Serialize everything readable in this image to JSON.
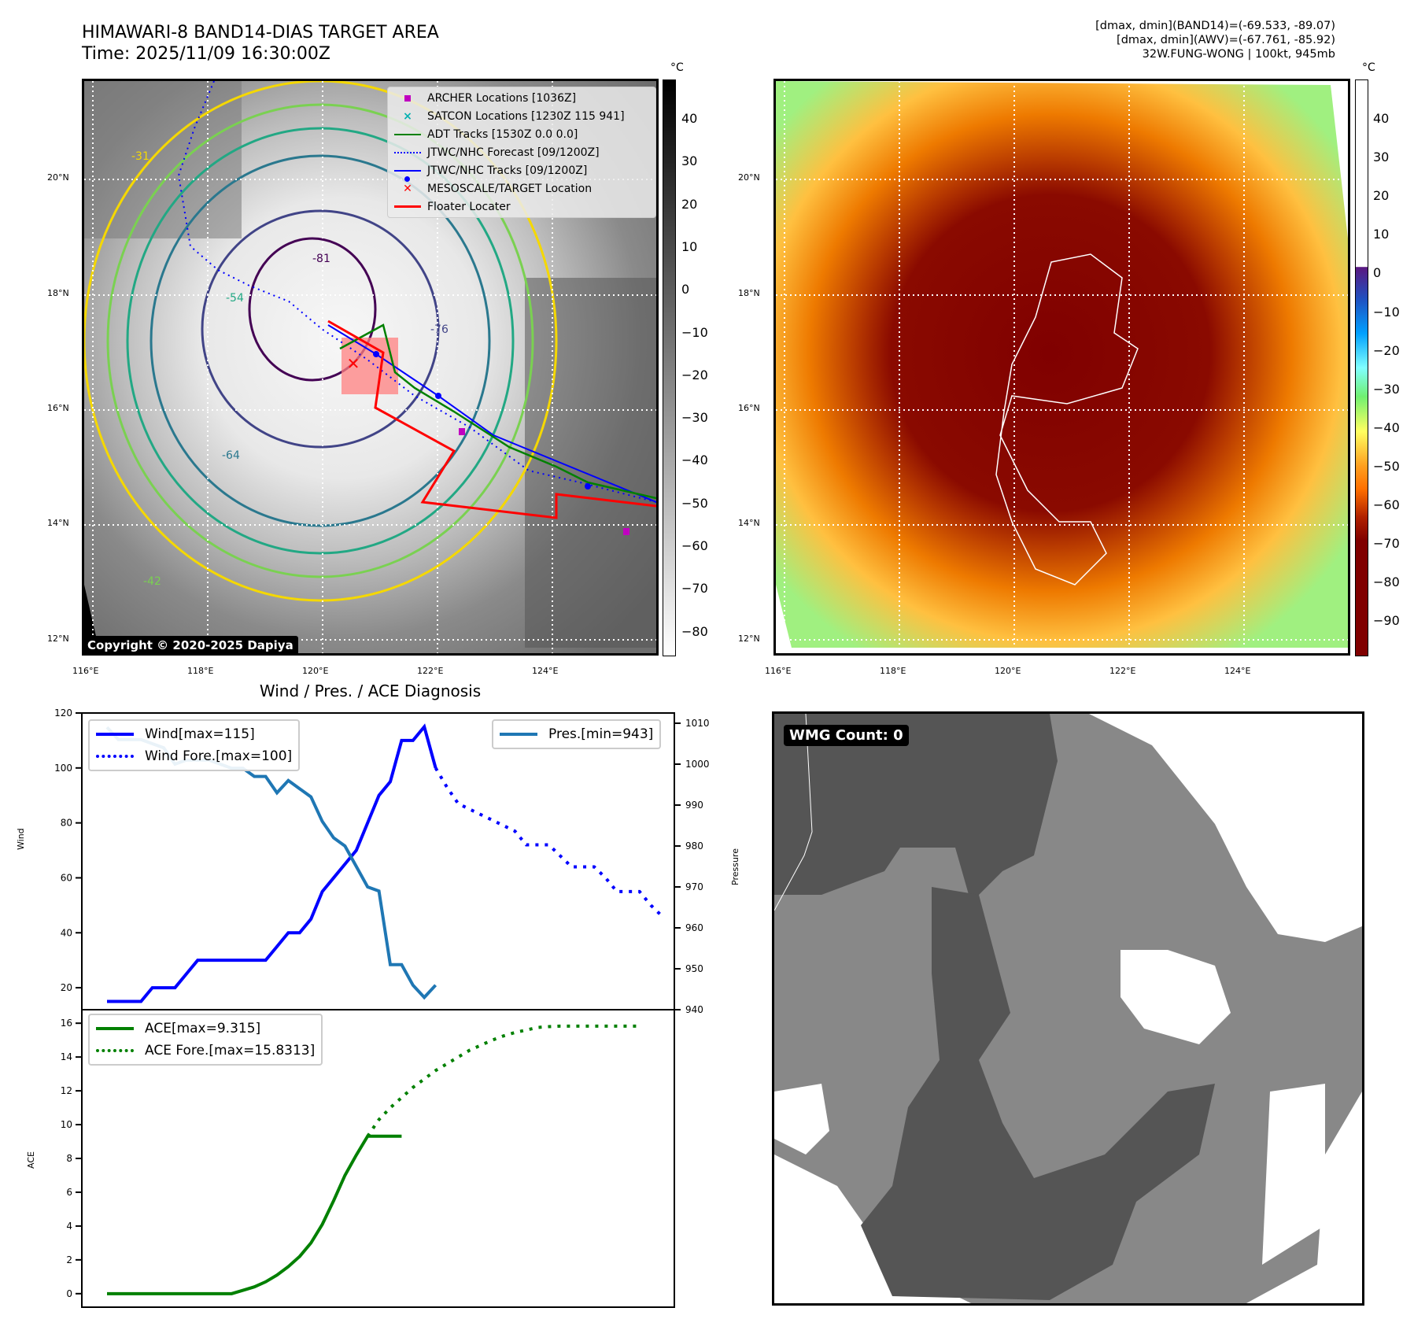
{
  "header": {
    "title": "HIMAWARI-8 BAND14-DIAS TARGET AREA",
    "time": "Time: 2025/11/09 16:30:00Z",
    "info_lines": [
      "[dmax, dmin](BAND14)=(-69.533, -89.07)",
      "[dmax, dmin](AWV)=(-67.761, -85.92)",
      "32W.FUNG-WONG | 100kt, 945mb"
    ]
  },
  "left_map": {
    "lat_labels": [
      "20°N",
      "18°N",
      "16°N",
      "14°N",
      "12°N"
    ],
    "lon_labels": [
      "116°E",
      "118°E",
      "120°E",
      "122°E",
      "124°E"
    ],
    "copyright": "Copyright © 2020-2025 Dapiya",
    "contour_labels": [
      "-31",
      "-42",
      "-54",
      "-64",
      "-76",
      "-81"
    ],
    "legend": [
      {
        "label": "ARCHER Locations [1036Z]",
        "icon": "magenta-square",
        "color": "#c000c0"
      },
      {
        "label": "SATCON Locations [1230Z 115 941]",
        "icon": "cyan-x",
        "color": "#00b0b0"
      },
      {
        "label": "ADT Tracks [1530Z 0.0 0.0]",
        "icon": "green-line",
        "color": "#008000"
      },
      {
        "label": "JTWC/NHC Forecast [09/1200Z]",
        "icon": "blue-dotted-line",
        "color": "#0000ff"
      },
      {
        "label": "JTWC/NHC Tracks [09/1200Z]",
        "icon": "blue-line-dot",
        "color": "#0000ff"
      },
      {
        "label": "MESOSCALE/TARGET Location",
        "icon": "red-x",
        "color": "#ff0000"
      },
      {
        "label": "Floater Locater",
        "icon": "red-line",
        "color": "#ff0000"
      }
    ],
    "colorbar": {
      "unit": "°C",
      "ticks": [
        "40",
        "30",
        "20",
        "10",
        "0",
        "−10",
        "−20",
        "−30",
        "−40",
        "−50",
        "−60",
        "−70",
        "−80"
      ]
    }
  },
  "right_map": {
    "lat_labels": [
      "20°N",
      "18°N",
      "16°N",
      "14°N",
      "12°N"
    ],
    "lon_labels": [
      "116°E",
      "118°E",
      "120°E",
      "122°E",
      "124°E"
    ],
    "colorbar": {
      "unit": "°C",
      "ticks": [
        "40",
        "30",
        "20",
        "10",
        "0",
        "−10",
        "−20",
        "−30",
        "−40",
        "−50",
        "−60",
        "−70",
        "−80",
        "−90"
      ]
    }
  },
  "wmg_panel": {
    "label": "WMG Count: 0"
  },
  "chart_data": [
    {
      "type": "line",
      "title": "Wind / Pres. / ACE Diagnosis",
      "ylabel": "Wind",
      "ylabel_right": "Pressure",
      "ylim": [
        12,
        120
      ],
      "ylim_right": [
        940,
        1012.5
      ],
      "yticks": [
        "120",
        "100",
        "80",
        "60",
        "40",
        "20"
      ],
      "yticks_right": [
        "1010",
        "1000",
        "990",
        "980",
        "970",
        "960",
        "950",
        "940"
      ],
      "series": [
        {
          "name": "Wind[max=115]",
          "style": "solid",
          "color": "#0000ff",
          "axis": "left",
          "x": [
            0,
            1,
            2,
            3,
            4,
            5,
            6,
            7,
            8,
            9,
            10,
            11,
            12,
            13,
            14,
            15,
            16,
            17,
            18,
            19,
            20,
            21,
            22,
            23,
            24,
            25,
            26,
            27,
            28,
            29
          ],
          "values": [
            15,
            15,
            15,
            15,
            20,
            20,
            20,
            25,
            30,
            30,
            30,
            30,
            30,
            30,
            30,
            35,
            40,
            40,
            45,
            55,
            60,
            65,
            70,
            80,
            90,
            95,
            110,
            110,
            115,
            100
          ]
        },
        {
          "name": "Wind Fore.[max=100]",
          "style": "dotted",
          "color": "#0000ff",
          "axis": "left",
          "x": [
            29,
            30,
            31,
            32,
            33,
            34,
            35,
            36,
            37,
            38,
            39,
            40,
            41,
            42,
            43,
            44,
            45,
            46,
            47,
            48,
            49
          ],
          "values": [
            100,
            93,
            87,
            85,
            83,
            81,
            79,
            77,
            72,
            72,
            72,
            68,
            64,
            64,
            64,
            60,
            55,
            55,
            55,
            50,
            46
          ]
        },
        {
          "name": "Pres.[min=943]",
          "style": "solid",
          "color": "#1f77b4",
          "axis": "right",
          "x": [
            0,
            1,
            2,
            3,
            4,
            5,
            6,
            7,
            8,
            9,
            10,
            11,
            12,
            13,
            14,
            15,
            16,
            17,
            18,
            19,
            20,
            21,
            22,
            23,
            24,
            25,
            26,
            27,
            28,
            29
          ],
          "values": [
            1009,
            1006,
            1006,
            1006,
            1005,
            1004,
            1000,
            1001,
            1001,
            1001,
            1000,
            999,
            999,
            997,
            997,
            993,
            996,
            994,
            992,
            986,
            982,
            980,
            975,
            970,
            969,
            951,
            951,
            946,
            943,
            946
          ]
        }
      ]
    },
    {
      "type": "line",
      "ylabel": "ACE",
      "ylim": [
        -0.8,
        16.8
      ],
      "yticks": [
        "16",
        "14",
        "12",
        "10",
        "8",
        "6",
        "4",
        "2",
        "0"
      ],
      "series": [
        {
          "name": "ACE[max=9.315]",
          "style": "solid",
          "color": "#008000",
          "x": [
            0,
            1,
            2,
            3,
            4,
            5,
            6,
            7,
            8,
            9,
            10,
            11,
            12,
            13,
            14,
            15,
            16,
            17,
            18,
            19,
            20,
            21,
            22,
            23,
            24,
            25,
            26
          ],
          "values": [
            0,
            0,
            0,
            0,
            0,
            0,
            0,
            0,
            0,
            0,
            0,
            0,
            0.2,
            0.4,
            0.7,
            1.1,
            1.6,
            2.2,
            3.0,
            4.1,
            5.5,
            7.0,
            8.2,
            9.315,
            9.315,
            9.315,
            9.315
          ]
        },
        {
          "name": "ACE Fore.[max=15.8313]",
          "style": "dotted",
          "color": "#008000",
          "x": [
            23,
            24,
            25,
            26,
            27,
            28,
            29,
            30,
            31,
            32,
            33,
            34,
            35,
            36,
            37,
            38,
            39,
            40,
            41,
            42,
            43,
            44,
            45,
            46,
            47
          ],
          "values": [
            9.315,
            10.3,
            11.0,
            11.6,
            12.2,
            12.7,
            13.2,
            13.6,
            14.0,
            14.4,
            14.7,
            15.0,
            15.25,
            15.45,
            15.6,
            15.75,
            15.8,
            15.83,
            15.83,
            15.83,
            15.83,
            15.83,
            15.83,
            15.83,
            15.83
          ]
        }
      ]
    }
  ]
}
